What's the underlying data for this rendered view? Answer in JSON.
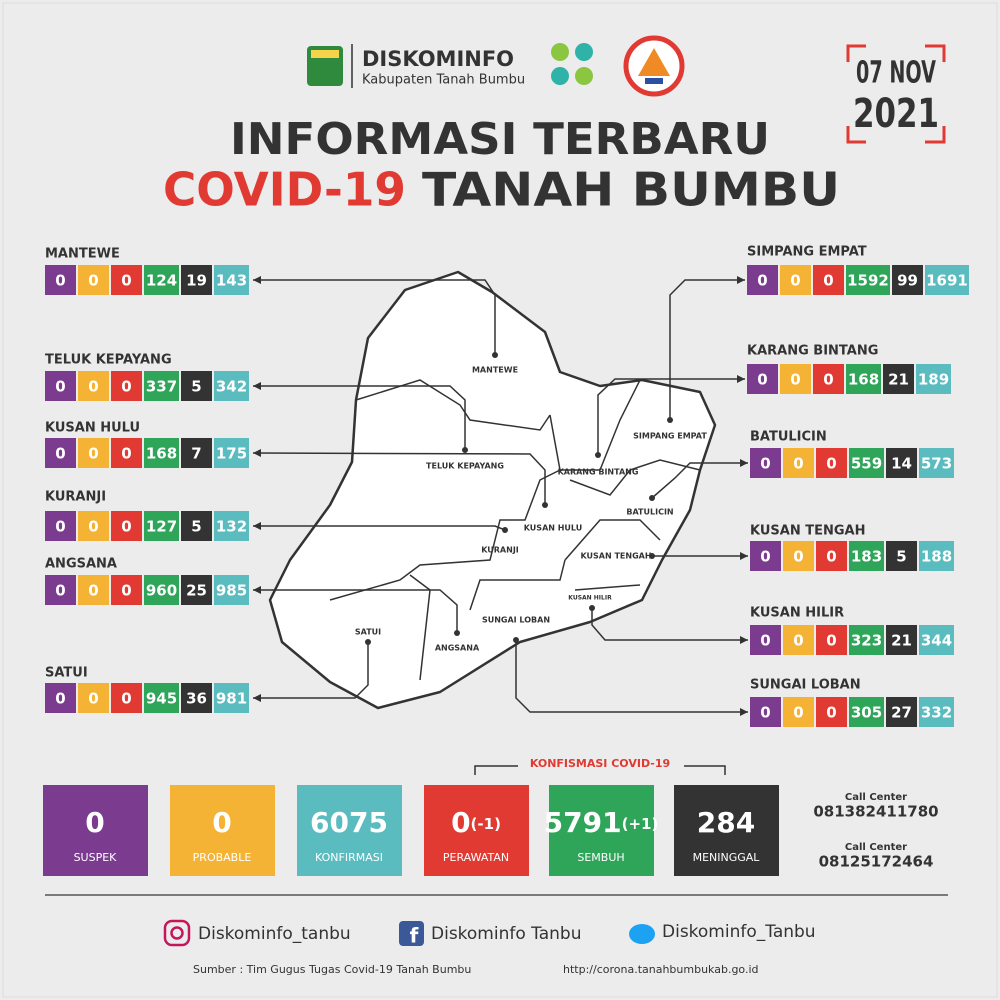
{
  "header": {
    "org": "DISKOMINFO",
    "sub": "Kabupaten Tanah Bumbu",
    "date_day": "07 NOV",
    "date_year": "2021",
    "title_line1": "INFORMASI TERBARU",
    "title_red": "COVID-19",
    "title_rest": "TANAH BUMBU"
  },
  "districts": [
    {
      "name": "MANTEWE",
      "values": [
        0,
        0,
        0,
        124,
        19,
        143
      ]
    },
    {
      "name": "TELUK KEPAYANG",
      "values": [
        0,
        0,
        0,
        337,
        5,
        342
      ]
    },
    {
      "name": "KUSAN HULU",
      "values": [
        0,
        0,
        0,
        168,
        7,
        175
      ]
    },
    {
      "name": "KURANJI",
      "values": [
        0,
        0,
        0,
        127,
        5,
        132
      ]
    },
    {
      "name": "ANGSANA",
      "values": [
        0,
        0,
        0,
        960,
        25,
        985
      ]
    },
    {
      "name": "SATUI",
      "values": [
        0,
        0,
        0,
        945,
        36,
        981
      ]
    },
    {
      "name": "SIMPANG EMPAT",
      "values": [
        0,
        0,
        0,
        1592,
        99,
        1691
      ]
    },
    {
      "name": "KARANG BINTANG",
      "values": [
        0,
        0,
        0,
        168,
        21,
        189
      ]
    },
    {
      "name": "BATULICIN",
      "values": [
        0,
        0,
        0,
        559,
        14,
        573
      ]
    },
    {
      "name": "KUSAN TENGAH",
      "values": [
        0,
        0,
        0,
        183,
        5,
        188
      ]
    },
    {
      "name": "KUSAN HILIR",
      "values": [
        0,
        0,
        0,
        323,
        21,
        344
      ]
    },
    {
      "name": "SUNGAI LOBAN",
      "values": [
        0,
        0,
        0,
        305,
        27,
        332
      ]
    }
  ],
  "summary": {
    "konfirmasi_heading": "KONFISMASI COVID-19",
    "cards": [
      {
        "value": 0,
        "label": "SUSPEK"
      },
      {
        "value": 0,
        "label": "PROBABLE"
      },
      {
        "value": 6075,
        "label": "KONFIRMASI"
      },
      {
        "value": 0,
        "change": "(-1)",
        "label": "PERAWATAN"
      },
      {
        "value": 5791,
        "change": "(+1)",
        "label": "SEMBUH"
      },
      {
        "value": 284,
        "label": "MENINGGAL"
      }
    ]
  },
  "call_center": [
    {
      "label": "Call Center",
      "number": "081382411780"
    },
    {
      "label": "Call Center",
      "number": "08125172464"
    }
  ],
  "social": {
    "instagram": "Diskominfo_tanbu",
    "facebook": "Diskominfo Tanbu",
    "twitter": "Diskominfo_Tanbu"
  },
  "footer": {
    "source": "Sumber : Tim Gugus Tugas Covid-19 Tanah Bumbu",
    "url": "http://corona.tanahbumbukab.go.id"
  }
}
